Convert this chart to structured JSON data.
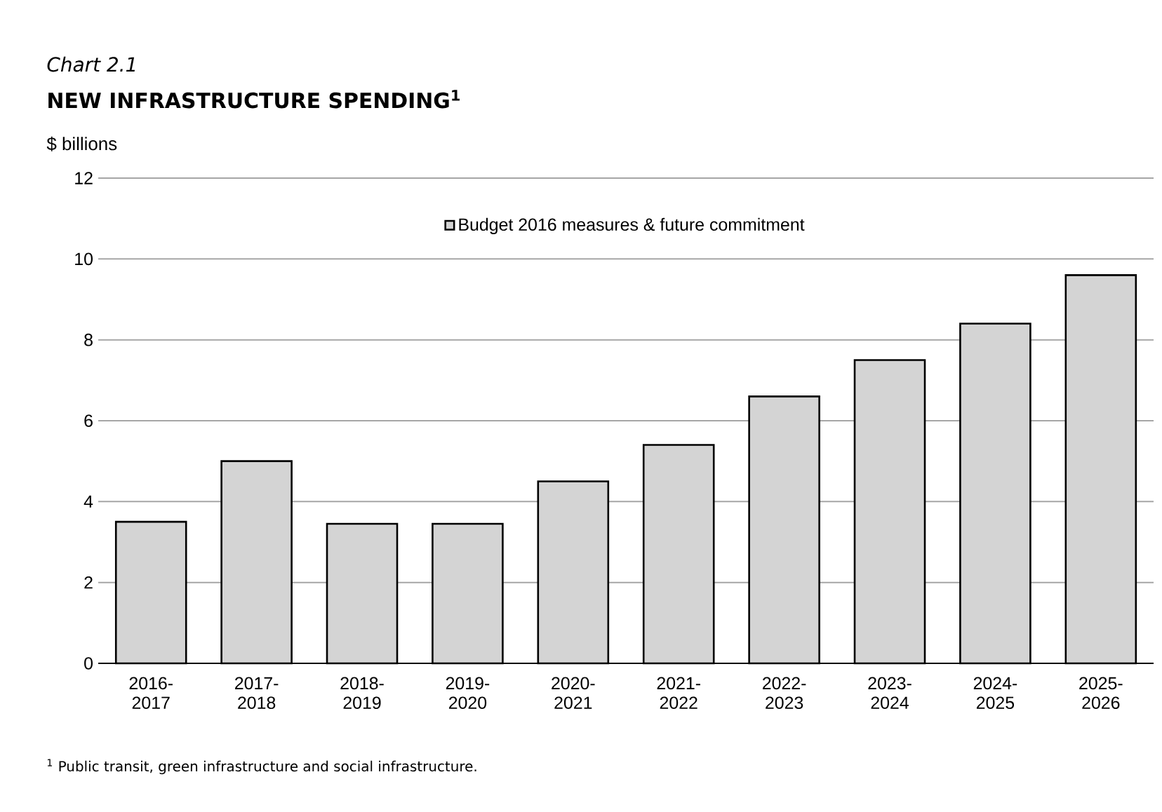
{
  "chart_data": {
    "type": "bar",
    "title": "Chart 2.1",
    "subtitle": "NEW INFRASTRUCTURE SPENDING$^{1}$",
    "ylabel": "$ billions",
    "categories": [
      "2016-2017",
      "2017-2018",
      "2018-2019",
      "2019-2020",
      "2020-2021",
      "2021-2022",
      "2022-2023",
      "2023-2024",
      "2024-2025",
      "2025-2026"
    ],
    "series": [
      {
        "name": "Budget 2016 measures & future commitment",
        "color": "#d4d4d4",
        "values": [
          3.5,
          5.0,
          3.45,
          3.45,
          4.5,
          5.4,
          6.6,
          7.5,
          8.4,
          9.6
        ]
      }
    ],
    "ylim": [
      0,
      12
    ],
    "yticks": [
      0,
      2,
      4,
      6,
      8,
      10,
      12
    ],
    "grid": "y",
    "legend": "top",
    "annotations": [
      "$^{1}$ Public transit, green infrastructure and social infrastructure."
    ]
  }
}
